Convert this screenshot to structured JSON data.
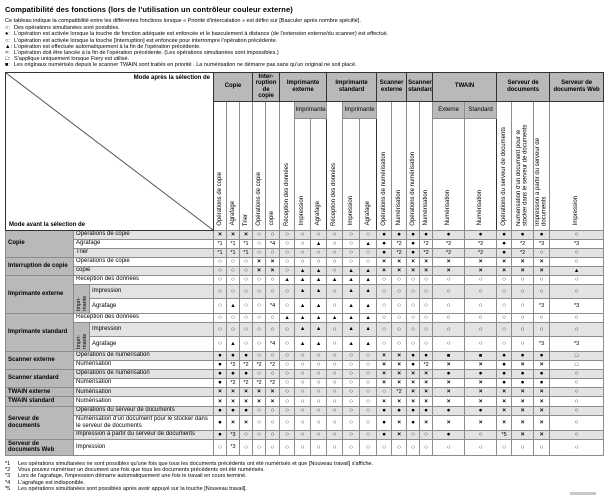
{
  "colors": {
    "header_gray": "#b9b9b9",
    "stripe_gray": "#e3e3e3",
    "border": "#8c8c8c",
    "border_dark": "#333333"
  },
  "page": {
    "title": "Compatibilité des fonctions (lors de l'utilisation un contrôleur couleur externe)",
    "intro": "Ce tableau indique la compatibilité entre les différentes fonctions lorsque « Priorité d'intercalation » est défini sur [Basculer après nombre spécifié].",
    "legend": [
      {
        "symbol": "○",
        "text": "Des opérations simultanées sont possibles."
      },
      {
        "symbol": "●",
        "text": "L'opération est activée lorsque la touche de fonction adéquate est enfoncée et le basculement à distance (de l'extension externe/du scanner) est effectué."
      },
      {
        "symbol": "○",
        "text": "L'opération est activée lorsque la touche [Interruption] est enfoncée pour interrompre l'opération précédente."
      },
      {
        "symbol": "▲",
        "text": "L'opération est effectuée automatiquement à la fin de l'opération précédente."
      },
      {
        "symbol": "×",
        "text": "L'opération doit être lancée à la fin de l'opération précédente. (Les opérations simultanées sont impossibles.)"
      },
      {
        "symbol": "□",
        "text": "S'applique uniquement lorsque Fiery est utilisé."
      },
      {
        "symbol": "■",
        "text": "Les originaux numérisés depuis le scanner TWAIN sont traités en priorité . La numérisation ne démarre pas sans qu'un original ne soit placé."
      }
    ],
    "footnotes": [
      {
        "ref": "*1",
        "text": "Les opérations simultanées ne sont possibles qu'une fois que tous les documents précédents ont été numérisés et que [Nouveau travail] s'affiche."
      },
      {
        "ref": "*2",
        "text": "Vous pouvez numériser un document une fois que tous les documents précédents ont été numérisés."
      },
      {
        "ref": "*3",
        "text": "Lors de l'agrafage, l'impression démarre automatiquement une fois le travail en cours terminé."
      },
      {
        "ref": "*4",
        "text": "L'agrafage est indisponible."
      },
      {
        "ref": "*5",
        "text": "Les opérations simultanées sont possibles après avoir appuyé sur la touche [Nouveau travail]."
      }
    ]
  },
  "table": {
    "corner": {
      "after": "Mode après la sélection de",
      "before": "Mode avant la sélection de"
    },
    "groups": [
      {
        "label": "Copie",
        "cols": 3
      },
      {
        "label": "Inter-ruption de copie",
        "cols": 2
      },
      {
        "label": "Imprimante externe",
        "cols": 3
      },
      {
        "label": "Imprimante standard",
        "cols": 3
      },
      {
        "label": "Scanner externe",
        "cols": 2
      },
      {
        "label": "Scanner standard",
        "cols": 2
      },
      {
        "label": "TWAIN",
        "cols": 2
      },
      {
        "label": "Serveur de documents",
        "cols": 3
      },
      {
        "label": "Serveur de documents Web",
        "cols": 1
      }
    ],
    "subheaders": [
      {
        "label": "Imprimante",
        "span": 2
      },
      {
        "label": "Imprimante",
        "span": 2
      },
      {
        "label": "Externe",
        "span": 1
      },
      {
        "label": "Standard",
        "span": 1
      }
    ],
    "columns": [
      "Opérations de copie",
      "Agrafage",
      "Trier",
      "Opérations de copie",
      "copie",
      "Réception des données",
      "Impression",
      "Agrafage",
      "Réception des données",
      "Impression",
      "Agrafage",
      "Opérations de numérisation",
      "Numérisation",
      "Opérations de numérisation",
      "Numérisation",
      "Numérisation",
      "Numérisation",
      "Opérations du serveur de documents",
      "Numérisation d'un document pour le stocker dans le serveur de documents",
      "Impression à partir du serveur de documents",
      "Impression"
    ],
    "rows": [
      {
        "group": "Copie",
        "span": 3,
        "label": "Opérations de copie",
        "cells": [
          "×",
          "×",
          "×",
          "○",
          "○",
          "○",
          "○",
          "○",
          "○",
          "○",
          "○",
          "●",
          "●",
          "●",
          "●",
          "●",
          "●",
          "●",
          "●",
          "●",
          "○"
        ]
      },
      {
        "label": "Agrafage",
        "cells": [
          "*1",
          "*1",
          "*1",
          "○",
          "*4",
          "○",
          "○",
          "▲",
          "○",
          "○",
          "▲",
          "●",
          "*2",
          "●",
          "*2",
          "*2",
          "*2",
          "●",
          "*2",
          "*3",
          "*3"
        ]
      },
      {
        "label": "Trier",
        "cells": [
          "*1",
          "*1",
          "*1",
          "○",
          "○",
          "○",
          "○",
          "○",
          "○",
          "○",
          "○",
          "●",
          "*2",
          "●",
          "*2",
          "*2",
          "*2",
          "●",
          "*2",
          "○",
          "○"
        ]
      },
      {
        "group": "Interruption de copie",
        "span": 2,
        "label": "Opérations de copie",
        "cells": [
          "○",
          "○",
          "○",
          "×",
          "×",
          "○",
          "○",
          "○",
          "○",
          "○",
          "○",
          "×",
          "×",
          "×",
          "×",
          "×",
          "×",
          "×",
          "×",
          "×",
          "○"
        ]
      },
      {
        "label": "copie",
        "cells": [
          "○",
          "○",
          "○",
          "×",
          "×",
          "○",
          "▲",
          "▲",
          "○",
          "▲",
          "▲",
          "×",
          "×",
          "×",
          "×",
          "×",
          "×",
          "×",
          "×",
          "×",
          "▲"
        ]
      },
      {
        "group": "Imprimante externe",
        "span": 3,
        "label": "Réception des données",
        "cells": [
          "○",
          "○",
          "○",
          "○",
          "○",
          "▲",
          "▲",
          "▲",
          "▲",
          "▲",
          "▲",
          "○",
          "○",
          "○",
          "○",
          "○",
          "○",
          "○",
          "○",
          "○",
          "○"
        ]
      },
      {
        "nest": "Impri-mante",
        "label": "Impression",
        "cells": [
          "○",
          "○",
          "○",
          "○",
          "○",
          "○",
          "▲",
          "▲",
          "○",
          "▲",
          "▲",
          "○",
          "○",
          "○",
          "○",
          "○",
          "○",
          "○",
          "○",
          "○",
          "○"
        ]
      },
      {
        "nested": true,
        "label": "Agrafage",
        "cells": [
          "○",
          "▲",
          "○",
          "○",
          "*4",
          "○",
          "▲",
          "▲",
          "○",
          "▲",
          "▲",
          "○",
          "○",
          "○",
          "○",
          "○",
          "○",
          "○",
          "○",
          "*3",
          "*3"
        ]
      },
      {
        "group": "Imprimante standard",
        "span": 3,
        "label": "Réception des données",
        "cells": [
          "○",
          "○",
          "○",
          "○",
          "○",
          "▲",
          "▲",
          "▲",
          "▲",
          "▲",
          "▲",
          "○",
          "○",
          "○",
          "○",
          "○",
          "○",
          "○",
          "○",
          "○",
          "○"
        ]
      },
      {
        "nest": "Impri-mante",
        "label": "Impression",
        "cells": [
          "○",
          "○",
          "○",
          "○",
          "○",
          "○",
          "▲",
          "▲",
          "○",
          "▲",
          "▲",
          "○",
          "○",
          "○",
          "○",
          "○",
          "○",
          "○",
          "○",
          "○",
          "○"
        ]
      },
      {
        "nested": true,
        "label": "Agrafage",
        "cells": [
          "○",
          "▲",
          "○",
          "○",
          "*4",
          "○",
          "▲",
          "▲",
          "○",
          "▲",
          "▲",
          "○",
          "○",
          "○",
          "○",
          "○",
          "○",
          "○",
          "○",
          "*3",
          "*3"
        ]
      },
      {
        "group": "Scanner externe",
        "span": 2,
        "label": "Opérations de numérisation",
        "cells": [
          "●",
          "●",
          "●",
          "○",
          "○",
          "○",
          "○",
          "○",
          "○",
          "○",
          "○",
          "×",
          "×",
          "●",
          "●",
          "■",
          "■",
          "●",
          "●",
          "●",
          "□"
        ]
      },
      {
        "label": "Numérisation",
        "cells": [
          "●",
          "*2",
          "*2",
          "*2",
          "*2",
          "○",
          "○",
          "○",
          "○",
          "○",
          "○",
          "×",
          "×",
          "●",
          "*2",
          "×",
          "×",
          "●",
          "×",
          "×",
          "□"
        ]
      },
      {
        "group": "Scanner standard",
        "span": 2,
        "label": "Opérations de numérisation",
        "cells": [
          "●",
          "●",
          "●",
          "○",
          "○",
          "○",
          "○",
          "○",
          "○",
          "○",
          "○",
          "×",
          "×",
          "×",
          "×",
          "●",
          "●",
          "●",
          "●",
          "●",
          "○"
        ]
      },
      {
        "label": "Numérisation",
        "cells": [
          "●",
          "*2",
          "*2",
          "*2",
          "*2",
          "○",
          "○",
          "○",
          "○",
          "○",
          "○",
          "×",
          "×",
          "×",
          "×",
          "×",
          "×",
          "●",
          "●",
          "●",
          "○"
        ]
      },
      {
        "group": "TWAIN externe",
        "span": 1,
        "label": "Numérisation",
        "cells": [
          "×",
          "×",
          "×",
          "×",
          "×",
          "○",
          "○",
          "○",
          "○",
          "○",
          "○",
          "○",
          "*2",
          "×",
          "×",
          "×",
          "×",
          "×",
          "×",
          "×",
          "○"
        ]
      },
      {
        "group": "TWAIN standard",
        "span": 1,
        "label": "Numérisation",
        "cells": [
          "×",
          "×",
          "×",
          "×",
          "×",
          "○",
          "○",
          "○",
          "○",
          "○",
          "○",
          "×",
          "×",
          "×",
          "×",
          "×",
          "×",
          "×",
          "×",
          "×",
          "○"
        ]
      },
      {
        "group": "Serveur de documents",
        "span": 3,
        "label": "Opérations du serveur de documents",
        "cells": [
          "●",
          "●",
          "●",
          "○",
          "○",
          "○",
          "○",
          "○",
          "○",
          "○",
          "○",
          "●",
          "●",
          "●",
          "●",
          "●",
          "●",
          "×",
          "×",
          "×",
          "○"
        ]
      },
      {
        "label": "Numérisation d'un document pour le stocker dans le serveur de documents",
        "cells": [
          "●",
          "×",
          "×",
          "○",
          "○",
          "○",
          "○",
          "○",
          "○",
          "○",
          "○",
          "●",
          "×",
          "●",
          "×",
          "×",
          "×",
          "×",
          "×",
          "×",
          "○"
        ]
      },
      {
        "label": "Impression à partir du serveur de documents",
        "cells": [
          "●",
          "*3",
          "○",
          "○",
          "○",
          "○",
          "○",
          "○",
          "○",
          "○",
          "○",
          "●",
          "×",
          "○",
          "○",
          "●",
          "○",
          "*5",
          "×",
          "×",
          "○"
        ]
      },
      {
        "group": "Serveur de documents Web",
        "span": 1,
        "label": "Impression",
        "cells": [
          "○",
          "*3",
          "○",
          "○",
          "○",
          "○",
          "○",
          "○",
          "○",
          "○",
          "○",
          "○",
          "○",
          "○",
          "○",
          "○",
          "○",
          "○",
          "○",
          "○",
          "○"
        ]
      }
    ]
  }
}
